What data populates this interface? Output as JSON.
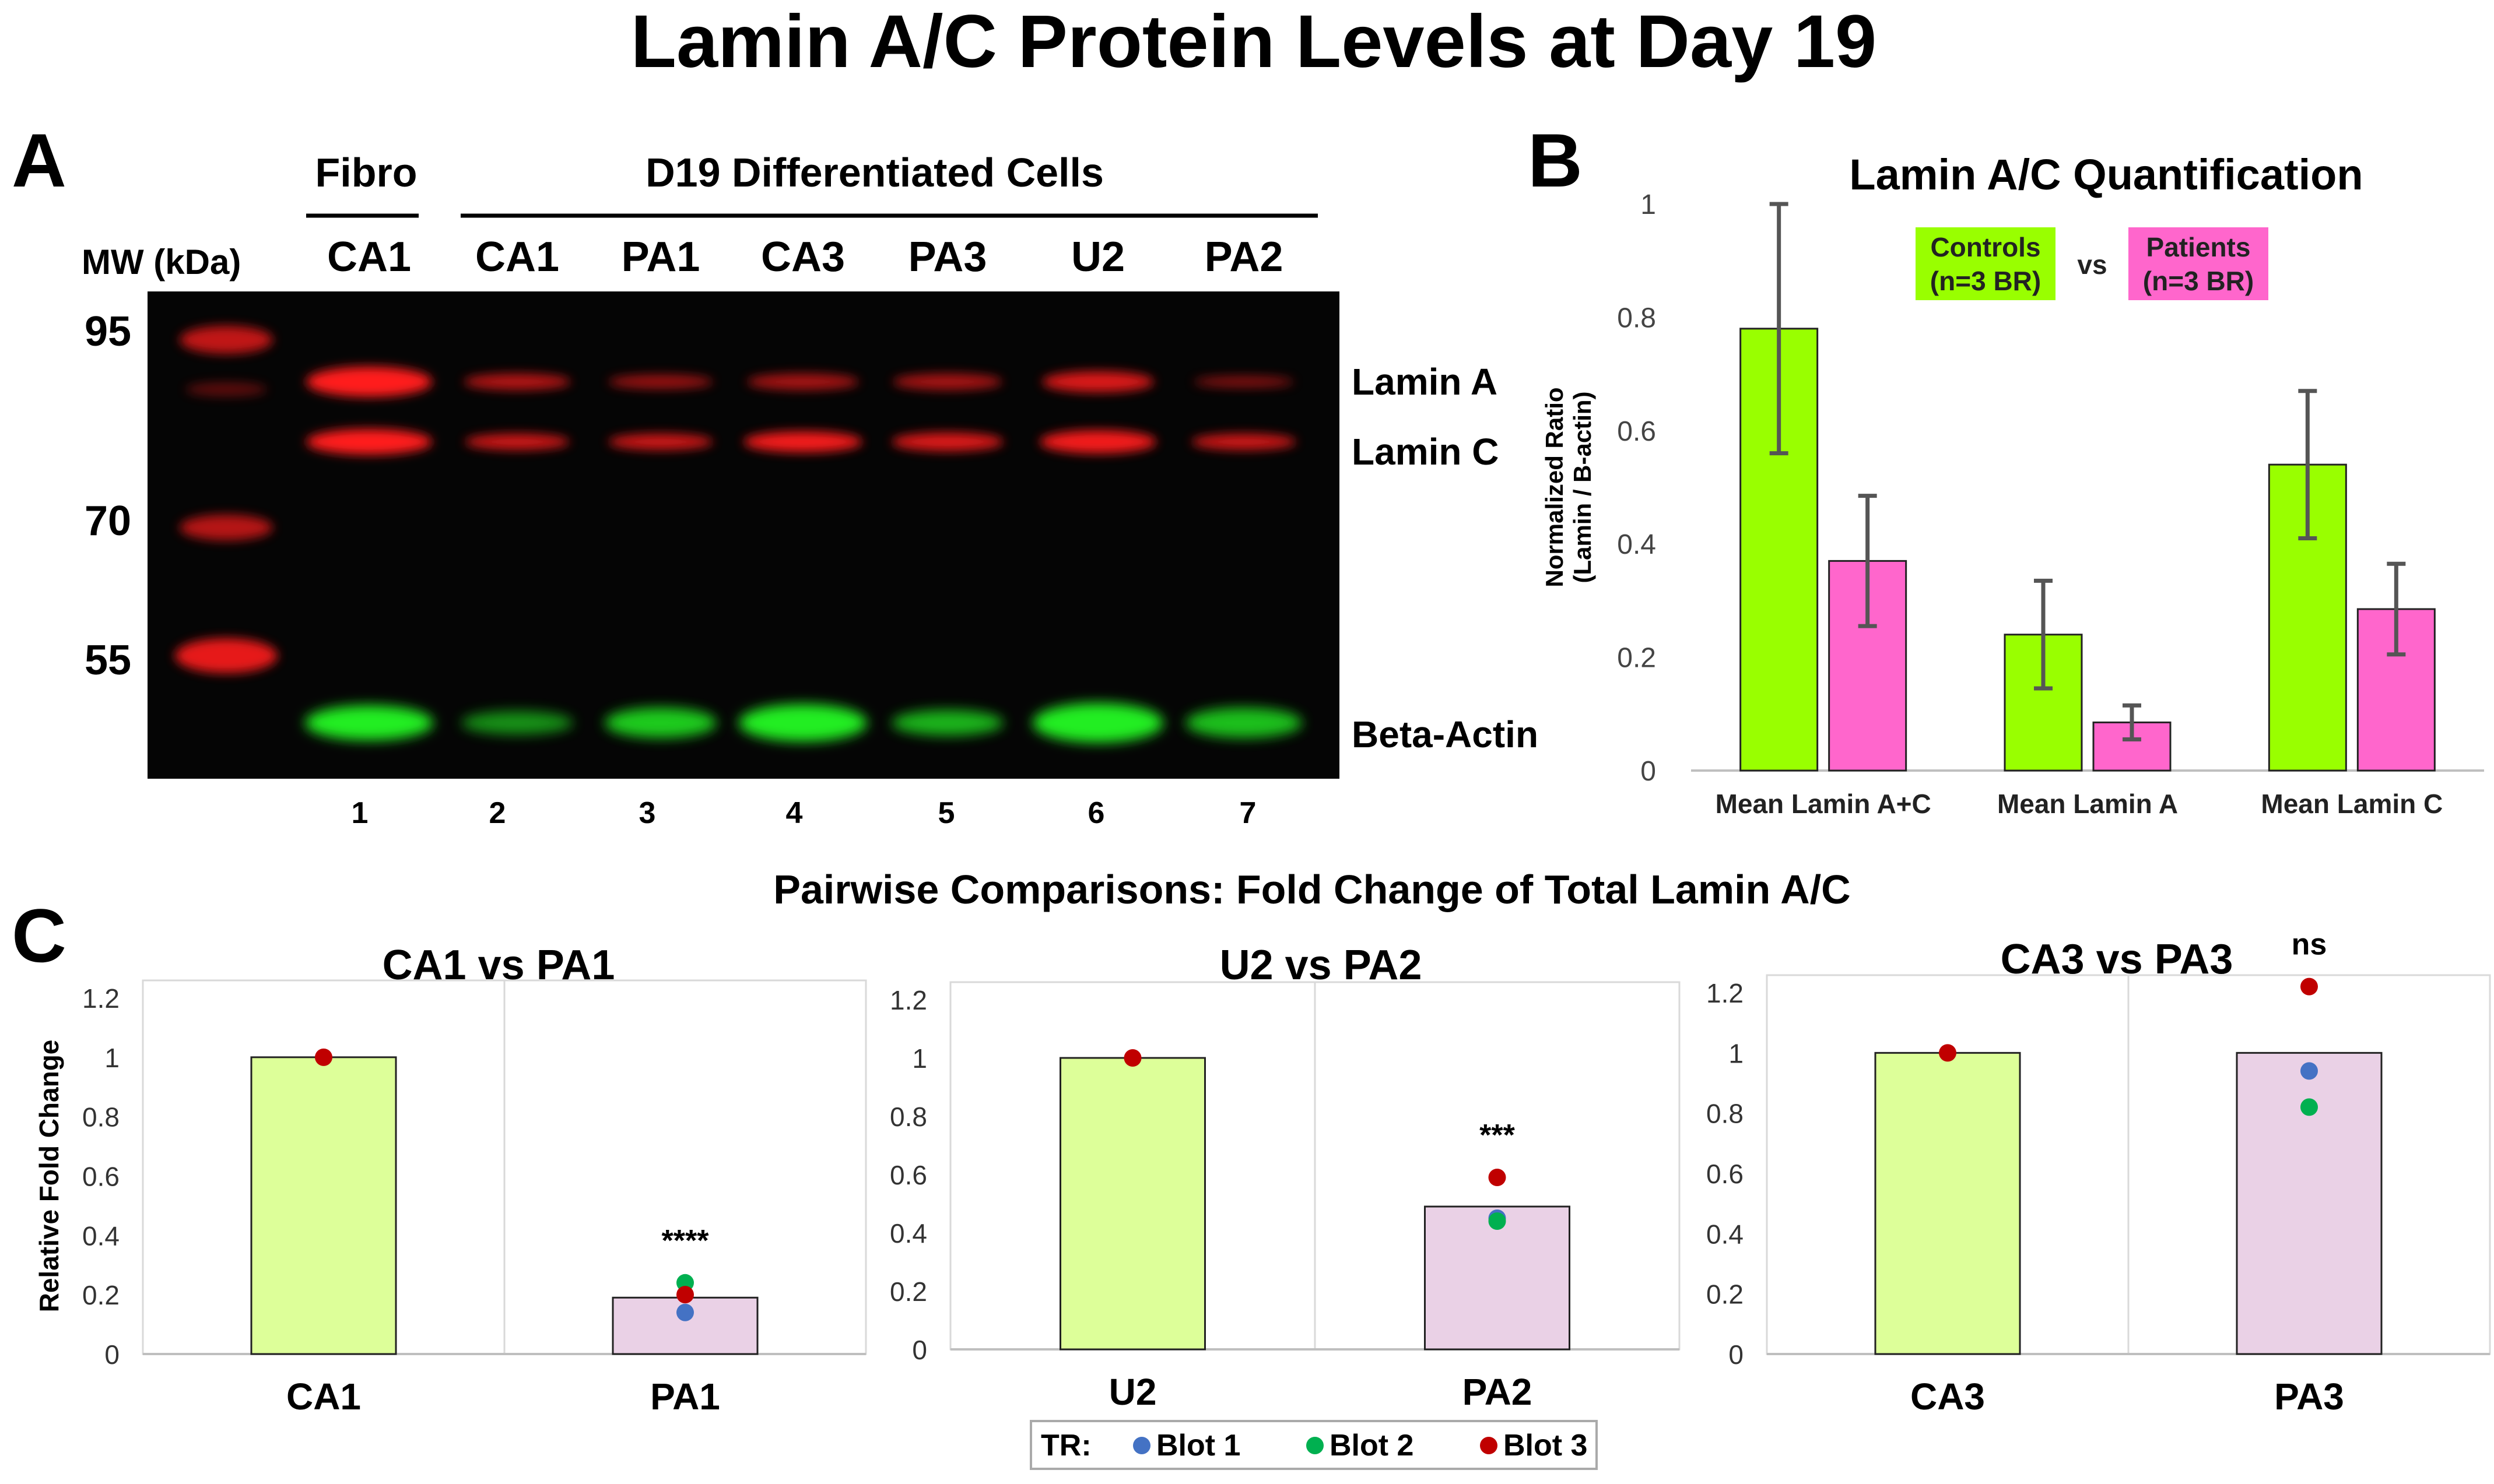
{
  "title": "Lamin A/C Protein Levels at Day 19",
  "panel_a": {
    "letter": "A",
    "mw_label": "MW (kDa)",
    "mw_markers": [
      "95",
      "70",
      "55"
    ],
    "group_fibro": "Fibro",
    "group_diff": "D19 Differentiated Cells",
    "sample_labels": [
      "CA1",
      "CA1",
      "PA1",
      "CA3",
      "PA3",
      "U2",
      "PA2"
    ],
    "lane_numbers": [
      "1",
      "2",
      "3",
      "4",
      "5",
      "6",
      "7"
    ],
    "band_labels": [
      "Lamin A",
      "Lamin C",
      "Beta-Actin"
    ],
    "colors": {
      "blot_bg": "#050505",
      "red_band": "#ff1a1a",
      "green_band": "#22ee22"
    }
  },
  "panel_b": {
    "letter": "B"
  },
  "panel_c": {
    "letter": "C",
    "heading": "Pairwise Comparisons: Fold Change of Total Lamin A/C",
    "legend": {
      "prefix": "TR:",
      "items": [
        "Blot 1",
        "Blot 2",
        "Blot 3"
      ]
    }
  },
  "chart_data": [
    {
      "id": "B",
      "type": "bar",
      "title": "Lamin A/C Quantification",
      "ylabel": "Normalized Ratio (Lamin / B-actin)",
      "ylabel_lines": [
        "Normalized Ratio",
        "(Lamin / B-actin)"
      ],
      "ylim": [
        0,
        1
      ],
      "yticks": [
        "0",
        "0.2",
        "0.4",
        "0.6",
        "0.8",
        "1"
      ],
      "categories": [
        "Mean Lamin A+C",
        "Mean Lamin A",
        "Mean Lamin C"
      ],
      "series": [
        {
          "name": "Controls (n=3 BR)",
          "label_lines": [
            "Controls",
            "(n=3 BR)"
          ],
          "color": "#99ff00",
          "values": [
            0.78,
            0.24,
            0.54
          ],
          "errors": [
            0.22,
            0.095,
            0.13
          ]
        },
        {
          "name": "Patients (n=3 BR)",
          "label_lines": [
            "Patients",
            "(n=3 BR)"
          ],
          "color": "#ff66cc",
          "values": [
            0.37,
            0.085,
            0.285
          ],
          "errors": [
            0.115,
            0.03,
            0.08
          ]
        }
      ],
      "legend_vs": "vs",
      "grid": false
    },
    {
      "id": "C1",
      "type": "bar",
      "title": "CA1 vs PA1",
      "ylabel": "Relative Fold Change",
      "ylim": [
        0,
        1.2
      ],
      "yticks": [
        "0",
        "0.2",
        "0.4",
        "0.6",
        "0.8",
        "1",
        "1.2"
      ],
      "categories": [
        "CA1",
        "PA1"
      ],
      "values": [
        1,
        0.19
      ],
      "bar_colors": [
        "#ddff99",
        "#ead1e6"
      ],
      "points": [
        {
          "category": 0,
          "blot": "Blot 3",
          "value": 1.0
        },
        {
          "category": 1,
          "blot": "Blot 1",
          "value": 0.14
        },
        {
          "category": 1,
          "blot": "Blot 2",
          "value": 0.24
        },
        {
          "category": 1,
          "blot": "Blot 3",
          "value": 0.2
        }
      ],
      "significance": {
        "category": 1,
        "label": "****"
      }
    },
    {
      "id": "C2",
      "type": "bar",
      "title": "U2 vs PA2",
      "ylabel": "",
      "ylim": [
        0,
        1.2
      ],
      "yticks": [
        "0",
        "0.2",
        "0.4",
        "0.6",
        "0.8",
        "1",
        "1.2"
      ],
      "categories": [
        "U2",
        "PA2"
      ],
      "values": [
        1,
        0.49
      ],
      "bar_colors": [
        "#ddff99",
        "#ead1e6"
      ],
      "points": [
        {
          "category": 0,
          "blot": "Blot 3",
          "value": 1.0
        },
        {
          "category": 1,
          "blot": "Blot 1",
          "value": 0.45
        },
        {
          "category": 1,
          "blot": "Blot 2",
          "value": 0.44
        },
        {
          "category": 1,
          "blot": "Blot 3",
          "value": 0.59
        }
      ],
      "significance": {
        "category": 1,
        "label": "***"
      }
    },
    {
      "id": "C3",
      "type": "bar",
      "title": "CA3 vs PA3",
      "ylabel": "",
      "ylim": [
        0,
        1.2
      ],
      "yticks": [
        "0",
        "0.2",
        "0.4",
        "0.6",
        "0.8",
        "1",
        "1.2"
      ],
      "categories": [
        "CA3",
        "PA3"
      ],
      "values": [
        1,
        1
      ],
      "bar_colors": [
        "#ddff99",
        "#ead1e6"
      ],
      "points": [
        {
          "category": 0,
          "blot": "Blot 3",
          "value": 1.0
        },
        {
          "category": 1,
          "blot": "Blot 1",
          "value": 0.94
        },
        {
          "category": 1,
          "blot": "Blot 2",
          "value": 0.82
        },
        {
          "category": 1,
          "blot": "Blot 3",
          "value": 1.22
        }
      ],
      "significance": {
        "category": 1,
        "label": "ns"
      }
    }
  ],
  "blot_colors": {
    "Blot 1": "#4472c4",
    "Blot 2": "#00b050",
    "Blot 3": "#c00000"
  }
}
